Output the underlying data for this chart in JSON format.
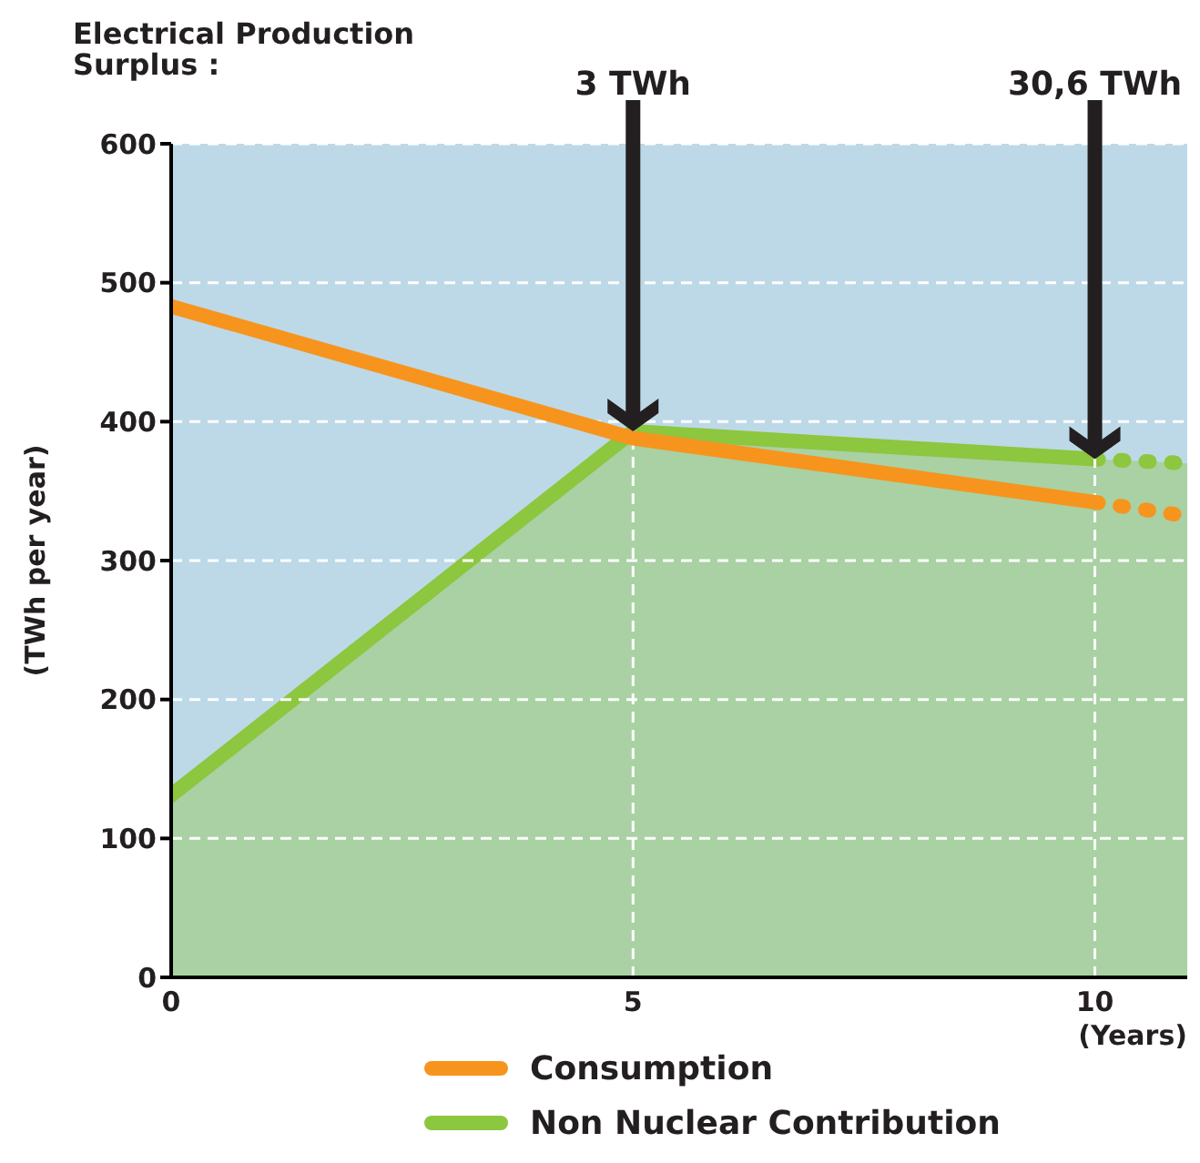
{
  "chart_data": {
    "type": "line",
    "title": "Electrical Production\nSurplus :",
    "xlabel": "(Years)",
    "ylabel": "(TWh per year)",
    "series": [
      {
        "type": "area",
        "name": "Non Nuclear Contribution",
        "color": "#8dc63f",
        "x": [
          0,
          5,
          10
        ],
        "values": [
          131,
          393,
          373
        ]
      },
      {
        "type": "area",
        "color": "#8dc63f",
        "x": [
          10,
          11
        ],
        "values": [
          373,
          370
        ],
        "line_style": "dotted"
      },
      {
        "type": "line",
        "name": "Consumption",
        "color": "#f7941d",
        "x": [
          0,
          5,
          10
        ],
        "values": [
          483,
          388,
          342
        ]
      },
      {
        "type": "line",
        "color": "#f7941d",
        "x": [
          10,
          11
        ],
        "values": [
          342,
          332
        ],
        "line_style": "dotted"
      }
    ],
    "annotations": [
      {
        "text": "3 TWh",
        "x": 5,
        "y": 393
      },
      {
        "text": "30,6 TWh",
        "x": 10,
        "y": 373
      }
    ],
    "xlim": [
      0,
      11
    ],
    "xticks": [
      0,
      5,
      10
    ],
    "ylim": [
      0,
      600
    ],
    "yticks": [
      0,
      100,
      200,
      300,
      400,
      500,
      600
    ],
    "bands": [
      {
        "axis": "x",
        "from": 0,
        "to": 11,
        "color": "#bdd9e7"
      }
    ],
    "grid": true,
    "legend": "bottom",
    "line_style": "solid"
  }
}
